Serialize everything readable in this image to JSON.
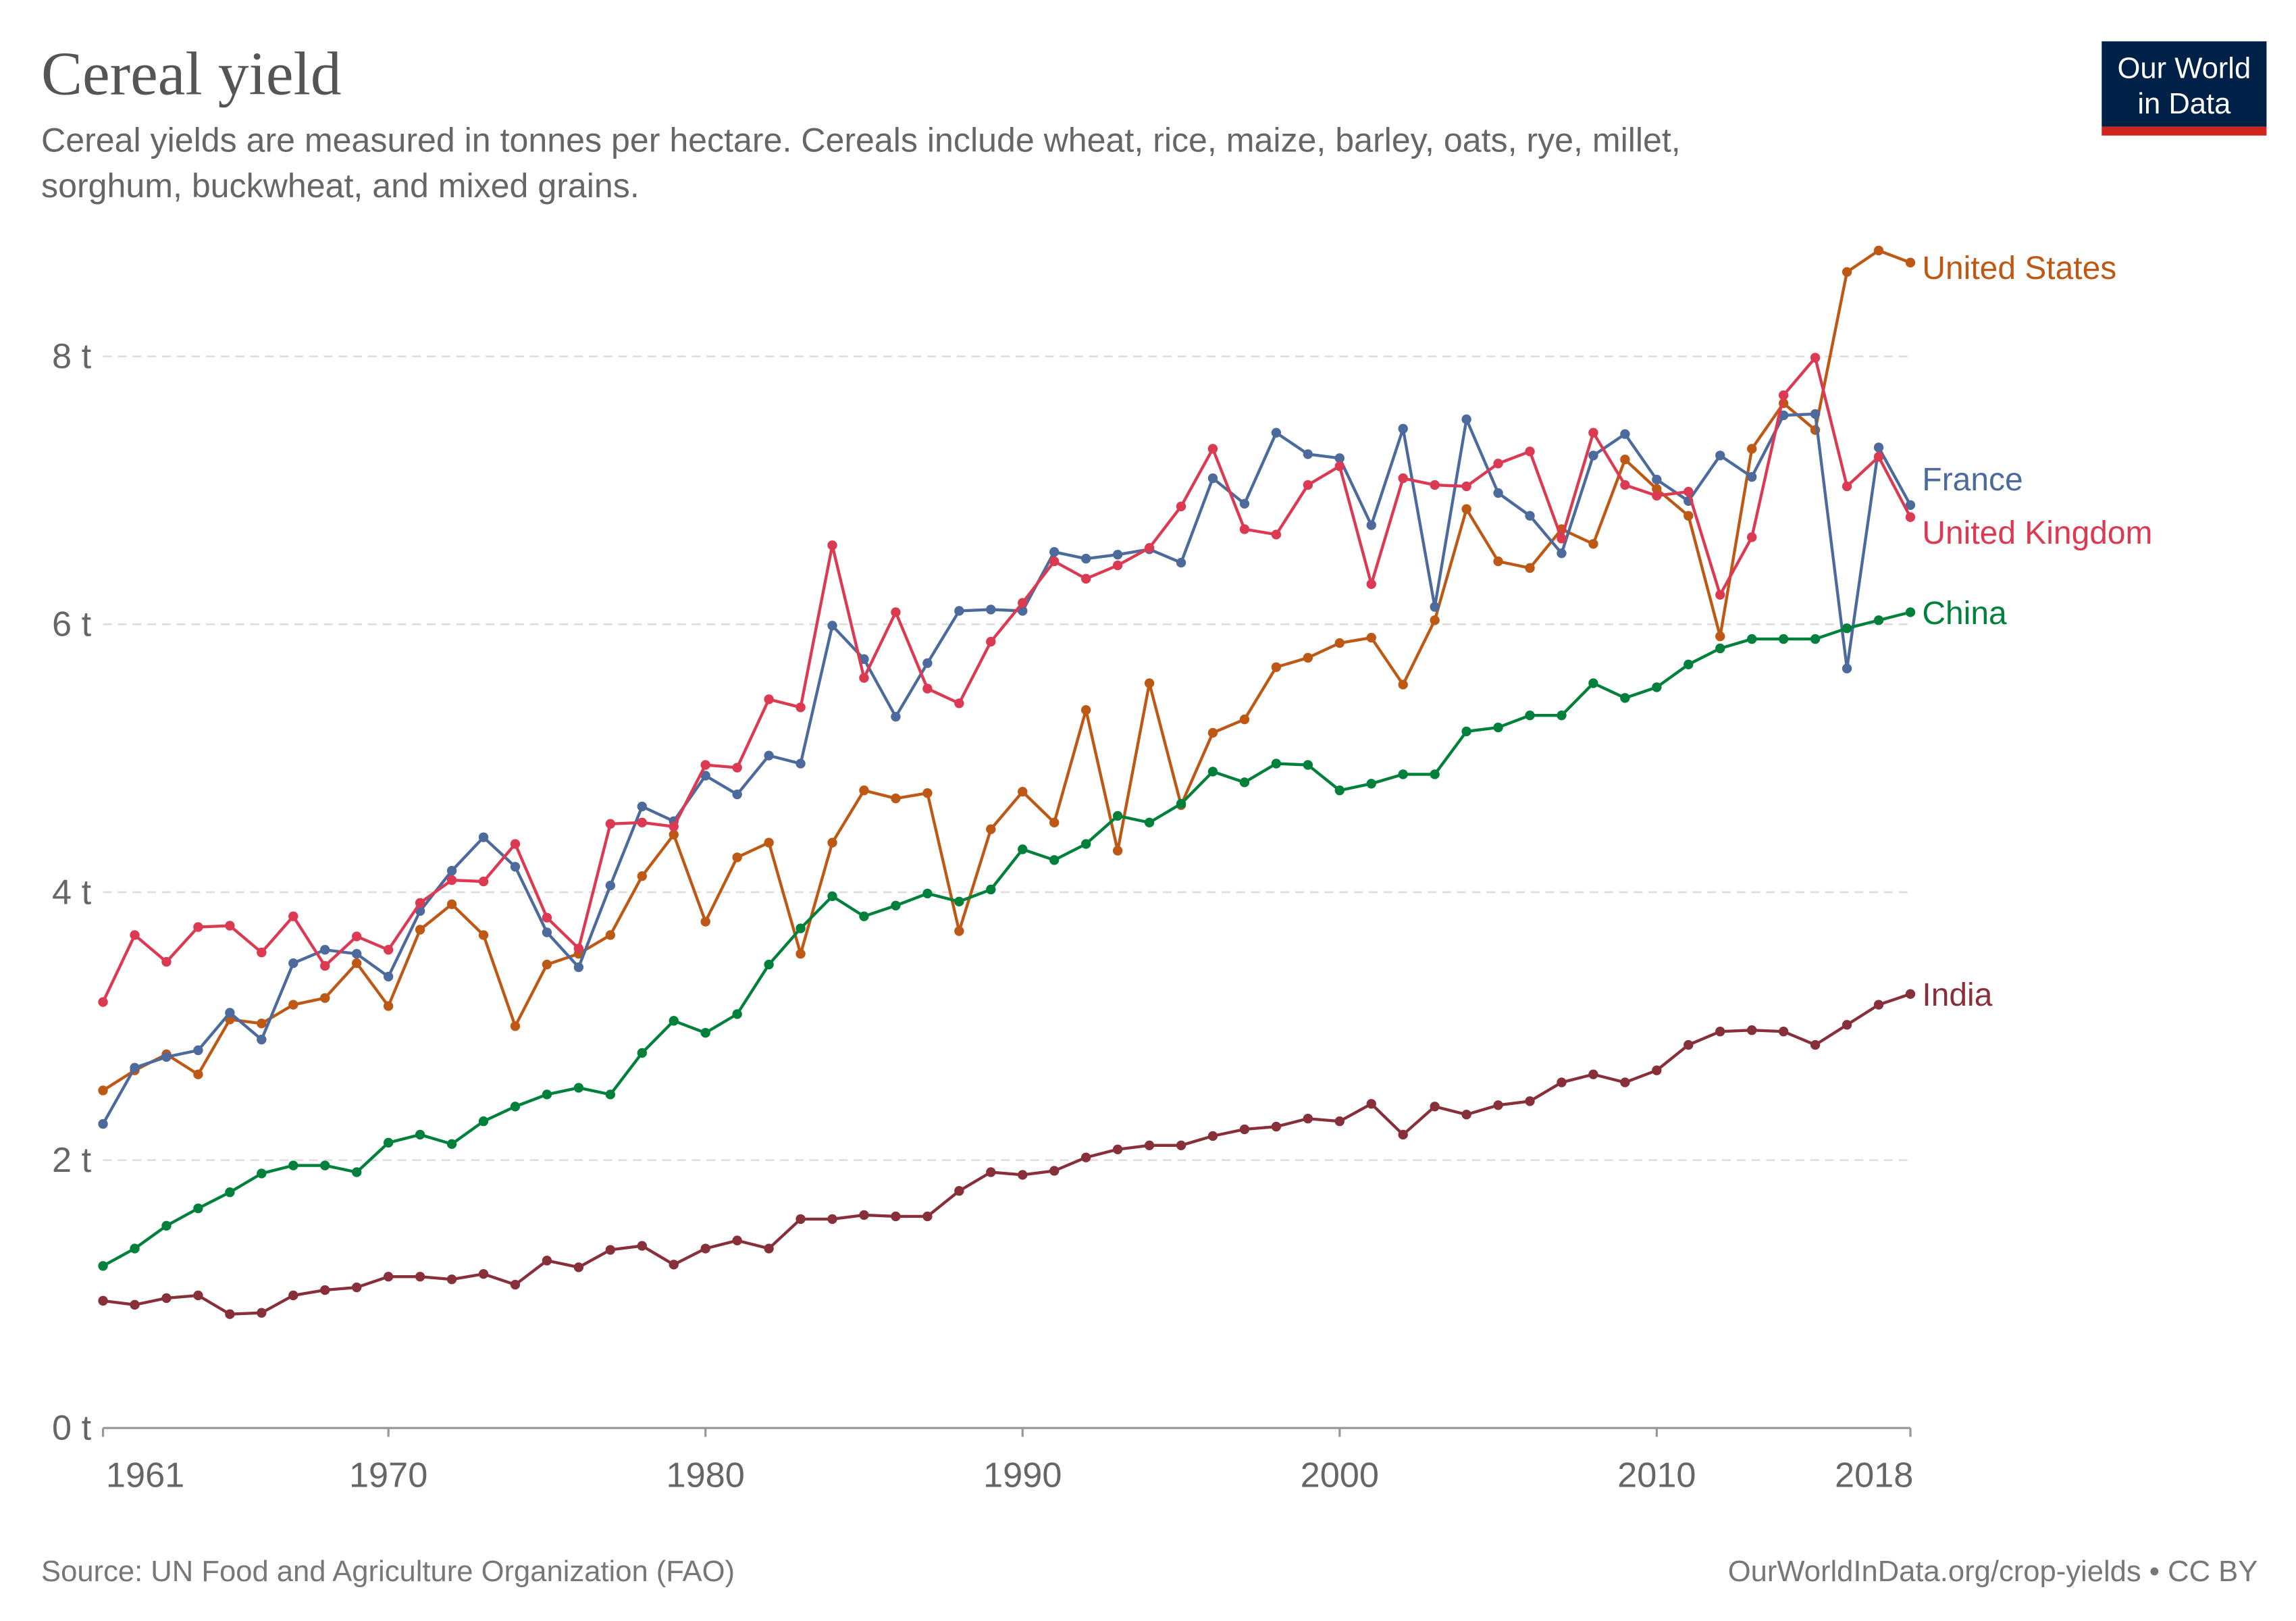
{
  "header": {
    "title": "Cereal yield",
    "subtitle_line1": "Cereal yields are measured in tonnes per hectare. Cereals include wheat, rice, maize, barley, oats, rye, millet,",
    "subtitle_line2": "sorghum, buckwheat, and mixed grains."
  },
  "logo": {
    "line1": "Our World",
    "line2": "in Data",
    "bg": "#002147",
    "accent": "#ce261e"
  },
  "footer": {
    "source": "Source: UN Food and Agriculture Organization (FAO)",
    "credit": "OurWorldInData.org/crop-yields • CC BY"
  },
  "chart_data": {
    "type": "line",
    "title": "Cereal yield",
    "xlabel": "",
    "ylabel": "",
    "xlim": [
      1961,
      2018
    ],
    "ylim": [
      0,
      8.9
    ],
    "x_ticks": [
      1961,
      1970,
      1980,
      1990,
      2000,
      2010,
      2018
    ],
    "y_ticks": [
      0,
      2,
      4,
      6,
      8
    ],
    "y_tick_labels": [
      "0 t",
      "2 t",
      "4 t",
      "6 t",
      "8 t"
    ],
    "grid": "horizontal dashed",
    "legend": "line-end labels on right",
    "x_start": 1961,
    "series": [
      {
        "name": "United States",
        "color": "#be5915",
        "values": [
          2.52,
          2.67,
          2.79,
          2.64,
          3.05,
          3.02,
          3.16,
          3.21,
          3.47,
          3.15,
          3.72,
          3.91,
          3.68,
          3.0,
          3.46,
          3.54,
          3.68,
          4.12,
          4.43,
          3.78,
          4.26,
          4.37,
          3.54,
          4.37,
          4.76,
          4.7,
          4.74,
          3.71,
          4.47,
          4.75,
          4.52,
          5.36,
          4.31,
          5.56,
          4.65,
          5.19,
          5.29,
          5.68,
          5.75,
          5.86,
          5.9,
          5.55,
          6.03,
          6.86,
          6.47,
          6.42,
          6.71,
          6.6,
          7.23,
          7.01,
          6.81,
          5.91,
          7.31,
          7.65,
          7.45,
          8.63,
          8.79,
          8.7
        ]
      },
      {
        "name": "France",
        "color": "#4c6a9c",
        "values": [
          2.27,
          2.69,
          2.77,
          2.82,
          3.1,
          2.9,
          3.47,
          3.57,
          3.54,
          3.37,
          3.86,
          4.16,
          4.41,
          4.19,
          3.7,
          3.44,
          4.05,
          4.64,
          4.53,
          4.87,
          4.73,
          5.02,
          4.96,
          5.99,
          5.74,
          5.31,
          5.71,
          6.1,
          6.11,
          6.1,
          6.54,
          6.49,
          6.52,
          6.56,
          6.46,
          7.09,
          6.9,
          7.43,
          7.27,
          7.24,
          6.74,
          7.46,
          6.13,
          7.53,
          6.98,
          6.81,
          6.53,
          7.26,
          7.42,
          7.08,
          6.92,
          7.26,
          7.1,
          7.56,
          7.57,
          5.67,
          7.32,
          6.89
        ]
      },
      {
        "name": "United Kingdom",
        "color": "#dc3a52",
        "values": [
          3.18,
          3.68,
          3.48,
          3.74,
          3.75,
          3.55,
          3.82,
          3.45,
          3.67,
          3.57,
          3.92,
          4.09,
          4.08,
          4.36,
          3.81,
          3.58,
          4.51,
          4.52,
          4.49,
          4.95,
          4.93,
          5.44,
          5.38,
          6.59,
          5.6,
          6.09,
          5.52,
          5.41,
          5.87,
          6.16,
          6.47,
          6.34,
          6.44,
          6.57,
          6.88,
          7.31,
          6.71,
          6.67,
          7.04,
          7.18,
          6.3,
          7.09,
          7.04,
          7.03,
          7.2,
          7.29,
          6.64,
          7.43,
          7.04,
          6.96,
          6.99,
          6.22,
          6.65,
          7.71,
          7.99,
          7.03,
          7.25,
          6.8
        ]
      },
      {
        "name": "China",
        "color": "#00813b",
        "values": [
          1.21,
          1.34,
          1.51,
          1.64,
          1.76,
          1.9,
          1.96,
          1.96,
          1.91,
          2.13,
          2.19,
          2.12,
          2.29,
          2.4,
          2.49,
          2.54,
          2.49,
          2.8,
          3.04,
          2.95,
          3.09,
          3.46,
          3.73,
          3.97,
          3.82,
          3.9,
          3.99,
          3.93,
          4.02,
          4.32,
          4.24,
          4.36,
          4.57,
          4.52,
          4.66,
          4.9,
          4.82,
          4.96,
          4.95,
          4.76,
          4.81,
          4.88,
          4.88,
          5.2,
          5.23,
          5.32,
          5.32,
          5.56,
          5.45,
          5.53,
          5.7,
          5.82,
          5.89,
          5.89,
          5.89,
          5.97,
          6.03,
          6.09
        ]
      },
      {
        "name": "India",
        "color": "#883039",
        "values": [
          0.95,
          0.92,
          0.97,
          0.99,
          0.85,
          0.86,
          0.99,
          1.03,
          1.05,
          1.13,
          1.13,
          1.11,
          1.15,
          1.07,
          1.25,
          1.2,
          1.33,
          1.36,
          1.22,
          1.34,
          1.4,
          1.34,
          1.56,
          1.56,
          1.59,
          1.58,
          1.58,
          1.77,
          1.91,
          1.89,
          1.92,
          2.02,
          2.08,
          2.11,
          2.11,
          2.18,
          2.23,
          2.25,
          2.31,
          2.29,
          2.42,
          2.19,
          2.4,
          2.34,
          2.41,
          2.44,
          2.58,
          2.64,
          2.58,
          2.67,
          2.86,
          2.96,
          2.97,
          2.96,
          2.86,
          3.01,
          3.16,
          3.24
        ]
      }
    ]
  }
}
